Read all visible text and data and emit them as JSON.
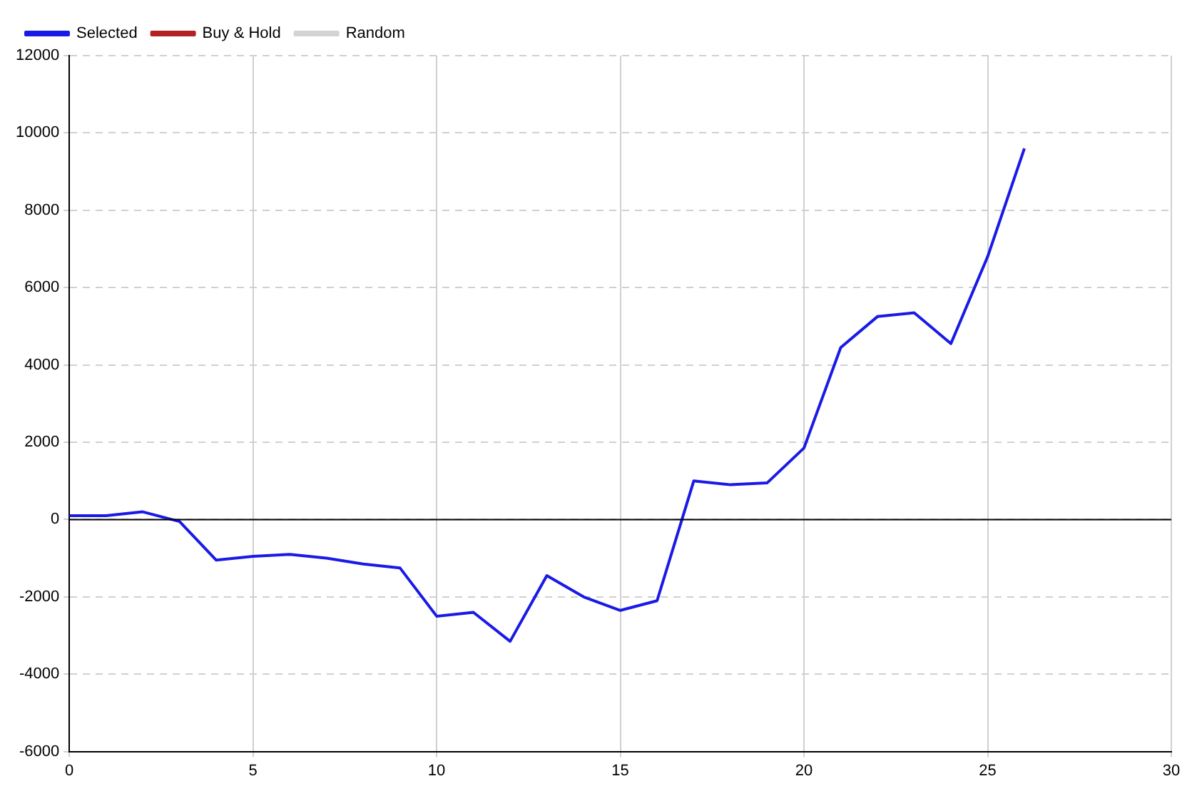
{
  "chart_data": {
    "type": "line",
    "x": [
      0,
      1,
      2,
      3,
      4,
      5,
      6,
      7,
      8,
      9,
      10,
      11,
      12,
      13,
      14,
      15,
      16,
      17,
      18,
      19,
      20,
      21,
      22,
      23,
      24,
      25,
      26
    ],
    "series": [
      {
        "name": "Selected",
        "color": "#1a1ae6",
        "values": [
          100,
          100,
          200,
          -50,
          -1050,
          -950,
          -900,
          -1000,
          -1150,
          -1250,
          -2500,
          -2400,
          -3150,
          -1450,
          -2000,
          -2350,
          -2100,
          1000,
          900,
          950,
          1850,
          4450,
          5250,
          5350,
          4550,
          6800,
          9600
        ]
      },
      {
        "name": "Buy & Hold",
        "color": "#b22222",
        "values": [
          null,
          null,
          null,
          null,
          null,
          null,
          null,
          null,
          null,
          null,
          null,
          null,
          null,
          null,
          null,
          null,
          null,
          null,
          null,
          null,
          null,
          null,
          null,
          null,
          null,
          null,
          null
        ]
      },
      {
        "name": "Random",
        "color": "#d3d3d3",
        "values": [
          null,
          null,
          null,
          null,
          null,
          null,
          null,
          null,
          null,
          null,
          null,
          null,
          null,
          null,
          null,
          null,
          null,
          null,
          null,
          null,
          null,
          null,
          null,
          null,
          null,
          null,
          null
        ]
      }
    ],
    "xlim": [
      0,
      30
    ],
    "xticks": [
      0,
      5,
      10,
      15,
      20,
      25,
      30
    ],
    "ylim": [
      -6000,
      12000
    ],
    "yticks": [
      -6000,
      -4000,
      -2000,
      0,
      2000,
      4000,
      6000,
      8000,
      10000,
      12000
    ],
    "ref_lines": [
      {
        "axis": "y",
        "value": 0,
        "color": "#000000"
      }
    ],
    "grid": true,
    "legend": "top left",
    "marker": "none",
    "line_style": "solid"
  }
}
